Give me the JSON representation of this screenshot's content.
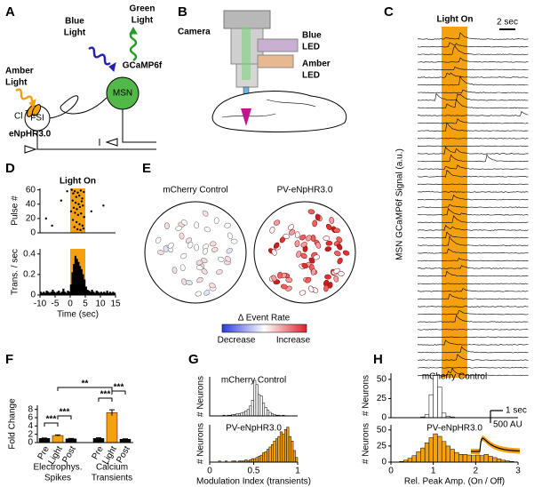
{
  "panel_labels": [
    "A",
    "B",
    "C",
    "D",
    "E",
    "F",
    "G",
    "H"
  ],
  "diagram_a": {
    "blue_light": [
      "Blue",
      "Light"
    ],
    "green_light": [
      "Green",
      "Light"
    ],
    "gcamp": "GCaMP6f",
    "amber_light": [
      "Amber",
      "Light"
    ],
    "fsi": "FSI",
    "msn": "MSN",
    "cl": "Cl",
    "cl_charge": "-",
    "enphr": "eNpHR3.0"
  },
  "diagram_b": {
    "camera": "Camera",
    "blue_led": [
      "Blue",
      "LED"
    ],
    "amber_led": [
      "Amber",
      "LED"
    ]
  },
  "panel_c": {
    "annotation": "Light On",
    "scale_label": "2 sec",
    "ylabel": "MSN GCaMP6f Signal (a.u.)"
  },
  "panel_e": {
    "titles": [
      "mCherry Control",
      "PV-eNpHR3.0"
    ],
    "colorbar": {
      "title": "Δ Event Rate",
      "low": "Decrease",
      "high": "Increase"
    }
  },
  "chart_data": [
    {
      "type": "scatter",
      "ylabel": "Pulse #",
      "annotation": "Light On",
      "shade": [
        0,
        5
      ],
      "shade_color": "#f5a00f",
      "color": "#000",
      "xlim": [
        -10,
        15
      ],
      "ylim": [
        0,
        62
      ],
      "yticks": [
        0,
        20,
        40,
        60
      ],
      "x": [
        -8,
        -6,
        -3,
        -1,
        7,
        11,
        0.5,
        1,
        1.5,
        2,
        2.5,
        3,
        3.5,
        4,
        4.5,
        0.8,
        1.8,
        2.8,
        3.8,
        4.2,
        1.2,
        2.2,
        3.2,
        0.3,
        1.6,
        2.6,
        3.6,
        4.6,
        0.9,
        2.1,
        3.1,
        4.1,
        1.4,
        2.4,
        3.4,
        4.4
      ],
      "y": [
        20,
        10,
        45,
        58,
        30,
        38,
        60,
        55,
        58,
        50,
        56,
        52,
        59,
        48,
        57,
        45,
        42,
        40,
        44,
        38,
        35,
        33,
        36,
        30,
        28,
        25,
        27,
        22,
        18,
        15,
        12,
        10,
        8,
        5,
        4,
        6
      ]
    },
    {
      "type": "histogram",
      "ylabel": "Trans. / sec",
      "xlabel": "Time (sec)",
      "shade": [
        0,
        5
      ],
      "shade_color": "#f5a00f",
      "color": "#000",
      "xlim": [
        -10,
        15
      ],
      "xticks": [
        -10,
        -5,
        0,
        5,
        10,
        15
      ],
      "ylim": [
        0,
        0.45
      ],
      "yticks": [
        0,
        0.2,
        0.4
      ],
      "bins": [
        -10,
        -9.5,
        -9,
        -8.5,
        -8,
        -7.5,
        -7,
        -6.5,
        -6,
        -5.5,
        -5,
        -4.5,
        -4,
        -3.5,
        -3,
        -2.5,
        -2,
        -1.5,
        -1,
        -0.5,
        0,
        0.5,
        1,
        1.5,
        2,
        2.5,
        3,
        3.5,
        4,
        4.5,
        5,
        5.5,
        6,
        6.5,
        7,
        7.5,
        8,
        8.5,
        9,
        9.5,
        10,
        10.5,
        11,
        11.5,
        12,
        12.5,
        13,
        13.5,
        14,
        14.5,
        15
      ],
      "values": [
        0.03,
        0.02,
        0.03,
        0.02,
        0.04,
        0.03,
        0.02,
        0.03,
        0.05,
        0.03,
        0.02,
        0.03,
        0.04,
        0.02,
        0.03,
        0.06,
        0.03,
        0.02,
        0.04,
        0.03,
        0.1,
        0.22,
        0.3,
        0.38,
        0.35,
        0.32,
        0.28,
        0.25,
        0.2,
        0.15,
        0.08,
        0.05,
        0.04,
        0.03,
        0.05,
        0.03,
        0.02,
        0.04,
        0.03,
        0.02,
        0.03,
        0.02,
        0.03,
        0.02,
        0.04,
        0.02,
        0.03,
        0.02,
        0.03,
        0.02
      ]
    },
    {
      "type": "bar",
      "ylabel": "Fold Change",
      "categories": [
        "Pre",
        "Light",
        "Post",
        "Pre",
        "Light",
        "Post"
      ],
      "values": [
        1,
        1.7,
        0.9,
        1,
        7.2,
        0.8
      ],
      "errors": [
        0.1,
        0.15,
        0.1,
        0.15,
        0.7,
        0.1
      ],
      "colors": [
        "#000",
        "#f5a00f",
        "#000",
        "#000",
        "#f5a00f",
        "#000"
      ],
      "groups": [
        [
          "Electrophys.",
          "Spikes"
        ],
        [
          "Calcium",
          "Transients"
        ]
      ],
      "significance": [
        "***",
        "***",
        "**",
        "***",
        "***"
      ],
      "ylim": [
        0,
        9
      ],
      "yticks": [
        0,
        2,
        4,
        6,
        8
      ]
    },
    {
      "type": "histogram",
      "title": "mCherry Control",
      "ylabel": "# Neurons",
      "color": "#fff",
      "xlim": [
        0,
        1
      ],
      "ylim": [
        0,
        55
      ],
      "bins": [
        0,
        0.025,
        0.05,
        0.075,
        0.1,
        0.125,
        0.15,
        0.175,
        0.2,
        0.225,
        0.25,
        0.275,
        0.3,
        0.325,
        0.35,
        0.375,
        0.4,
        0.425,
        0.45,
        0.475,
        0.5,
        0.525,
        0.55,
        0.575,
        0.6,
        0.625,
        0.65,
        0.675,
        0.7,
        0.725,
        0.75,
        0.775,
        0.8,
        0.825,
        0.85,
        0.875,
        0.9,
        0.925,
        0.95,
        0.975,
        1
      ],
      "values": [
        0,
        0,
        0,
        0,
        0,
        0,
        1,
        0,
        1,
        1,
        2,
        2,
        3,
        3,
        4,
        5,
        7,
        9,
        14,
        22,
        50,
        44,
        30,
        28,
        18,
        12,
        8,
        5,
        3,
        2,
        1,
        1,
        0,
        1,
        0,
        0,
        0,
        0,
        0,
        0
      ]
    },
    {
      "type": "histogram",
      "title": "PV-eNpHR3.0",
      "ylabel": "# Neurons",
      "xlabel": "Modulation Index (transients)",
      "color": "#f5a00f",
      "xlim": [
        0,
        1
      ],
      "xticks": [
        0,
        0.5,
        1
      ],
      "ylim": [
        0,
        32
      ],
      "bins": [
        0,
        0.025,
        0.05,
        0.075,
        0.1,
        0.125,
        0.15,
        0.175,
        0.2,
        0.225,
        0.25,
        0.275,
        0.3,
        0.325,
        0.35,
        0.375,
        0.4,
        0.425,
        0.45,
        0.475,
        0.5,
        0.525,
        0.55,
        0.575,
        0.6,
        0.625,
        0.65,
        0.675,
        0.7,
        0.725,
        0.75,
        0.775,
        0.8,
        0.825,
        0.85,
        0.875,
        0.9,
        0.925,
        0.95,
        0.975,
        1
      ],
      "values": [
        0,
        0,
        0,
        0,
        1,
        0,
        0,
        1,
        0,
        0,
        1,
        1,
        0,
        1,
        1,
        1,
        2,
        1,
        2,
        3,
        3,
        4,
        5,
        6,
        8,
        9,
        11,
        13,
        15,
        18,
        20,
        22,
        26,
        24,
        28,
        30,
        22,
        18,
        10,
        4
      ]
    },
    {
      "type": "histogram",
      "title": "mCherry Control",
      "ylabel": "# Neurons",
      "color": "#fff",
      "xlim": [
        0,
        3
      ],
      "ylim": [
        0,
        58
      ],
      "yticks": [
        0,
        25,
        50
      ],
      "bins": [
        0,
        0.1,
        0.2,
        0.3,
        0.4,
        0.5,
        0.6,
        0.7,
        0.8,
        0.9,
        1,
        1.1,
        1.2,
        1.3,
        1.4,
        1.5,
        1.6,
        1.7,
        1.8,
        1.9,
        2,
        2.1,
        2.2,
        2.3,
        2.4,
        2.5,
        2.6,
        2.7,
        2.8,
        2.9,
        3
      ],
      "values": [
        0,
        0,
        0,
        0,
        0,
        0,
        0,
        1,
        4,
        30,
        55,
        40,
        6,
        2,
        1,
        0,
        0,
        0,
        0,
        0,
        0,
        0,
        0,
        0,
        0,
        0,
        0,
        0,
        0,
        0
      ]
    },
    {
      "type": "histogram",
      "title": "PV-eNpHR3.0",
      "ylabel": "# Neurons",
      "xlabel": "Rel. Peak Amp. (On / Off)",
      "color": "#f5a00f",
      "xlim": [
        0,
        3
      ],
      "xticks": [
        0,
        1,
        2,
        3
      ],
      "ylim": [
        0,
        58
      ],
      "yticks": [
        0,
        25,
        50
      ],
      "inset": {
        "time_scale": "1 sec",
        "amp_scale": "500 AU"
      },
      "bins": [
        0,
        0.1,
        0.2,
        0.3,
        0.4,
        0.5,
        0.6,
        0.7,
        0.8,
        0.9,
        1,
        1.1,
        1.2,
        1.3,
        1.4,
        1.5,
        1.6,
        1.7,
        1.8,
        1.9,
        2,
        2.1,
        2.2,
        2.3,
        2.4,
        2.5,
        2.6,
        2.7,
        2.8,
        2.9,
        3
      ],
      "values": [
        0,
        0,
        1,
        3,
        6,
        10,
        16,
        22,
        30,
        38,
        44,
        40,
        32,
        25,
        20,
        15,
        12,
        12,
        11,
        10,
        11,
        10,
        12,
        9,
        7,
        5,
        3,
        2,
        1,
        0
      ]
    }
  ]
}
